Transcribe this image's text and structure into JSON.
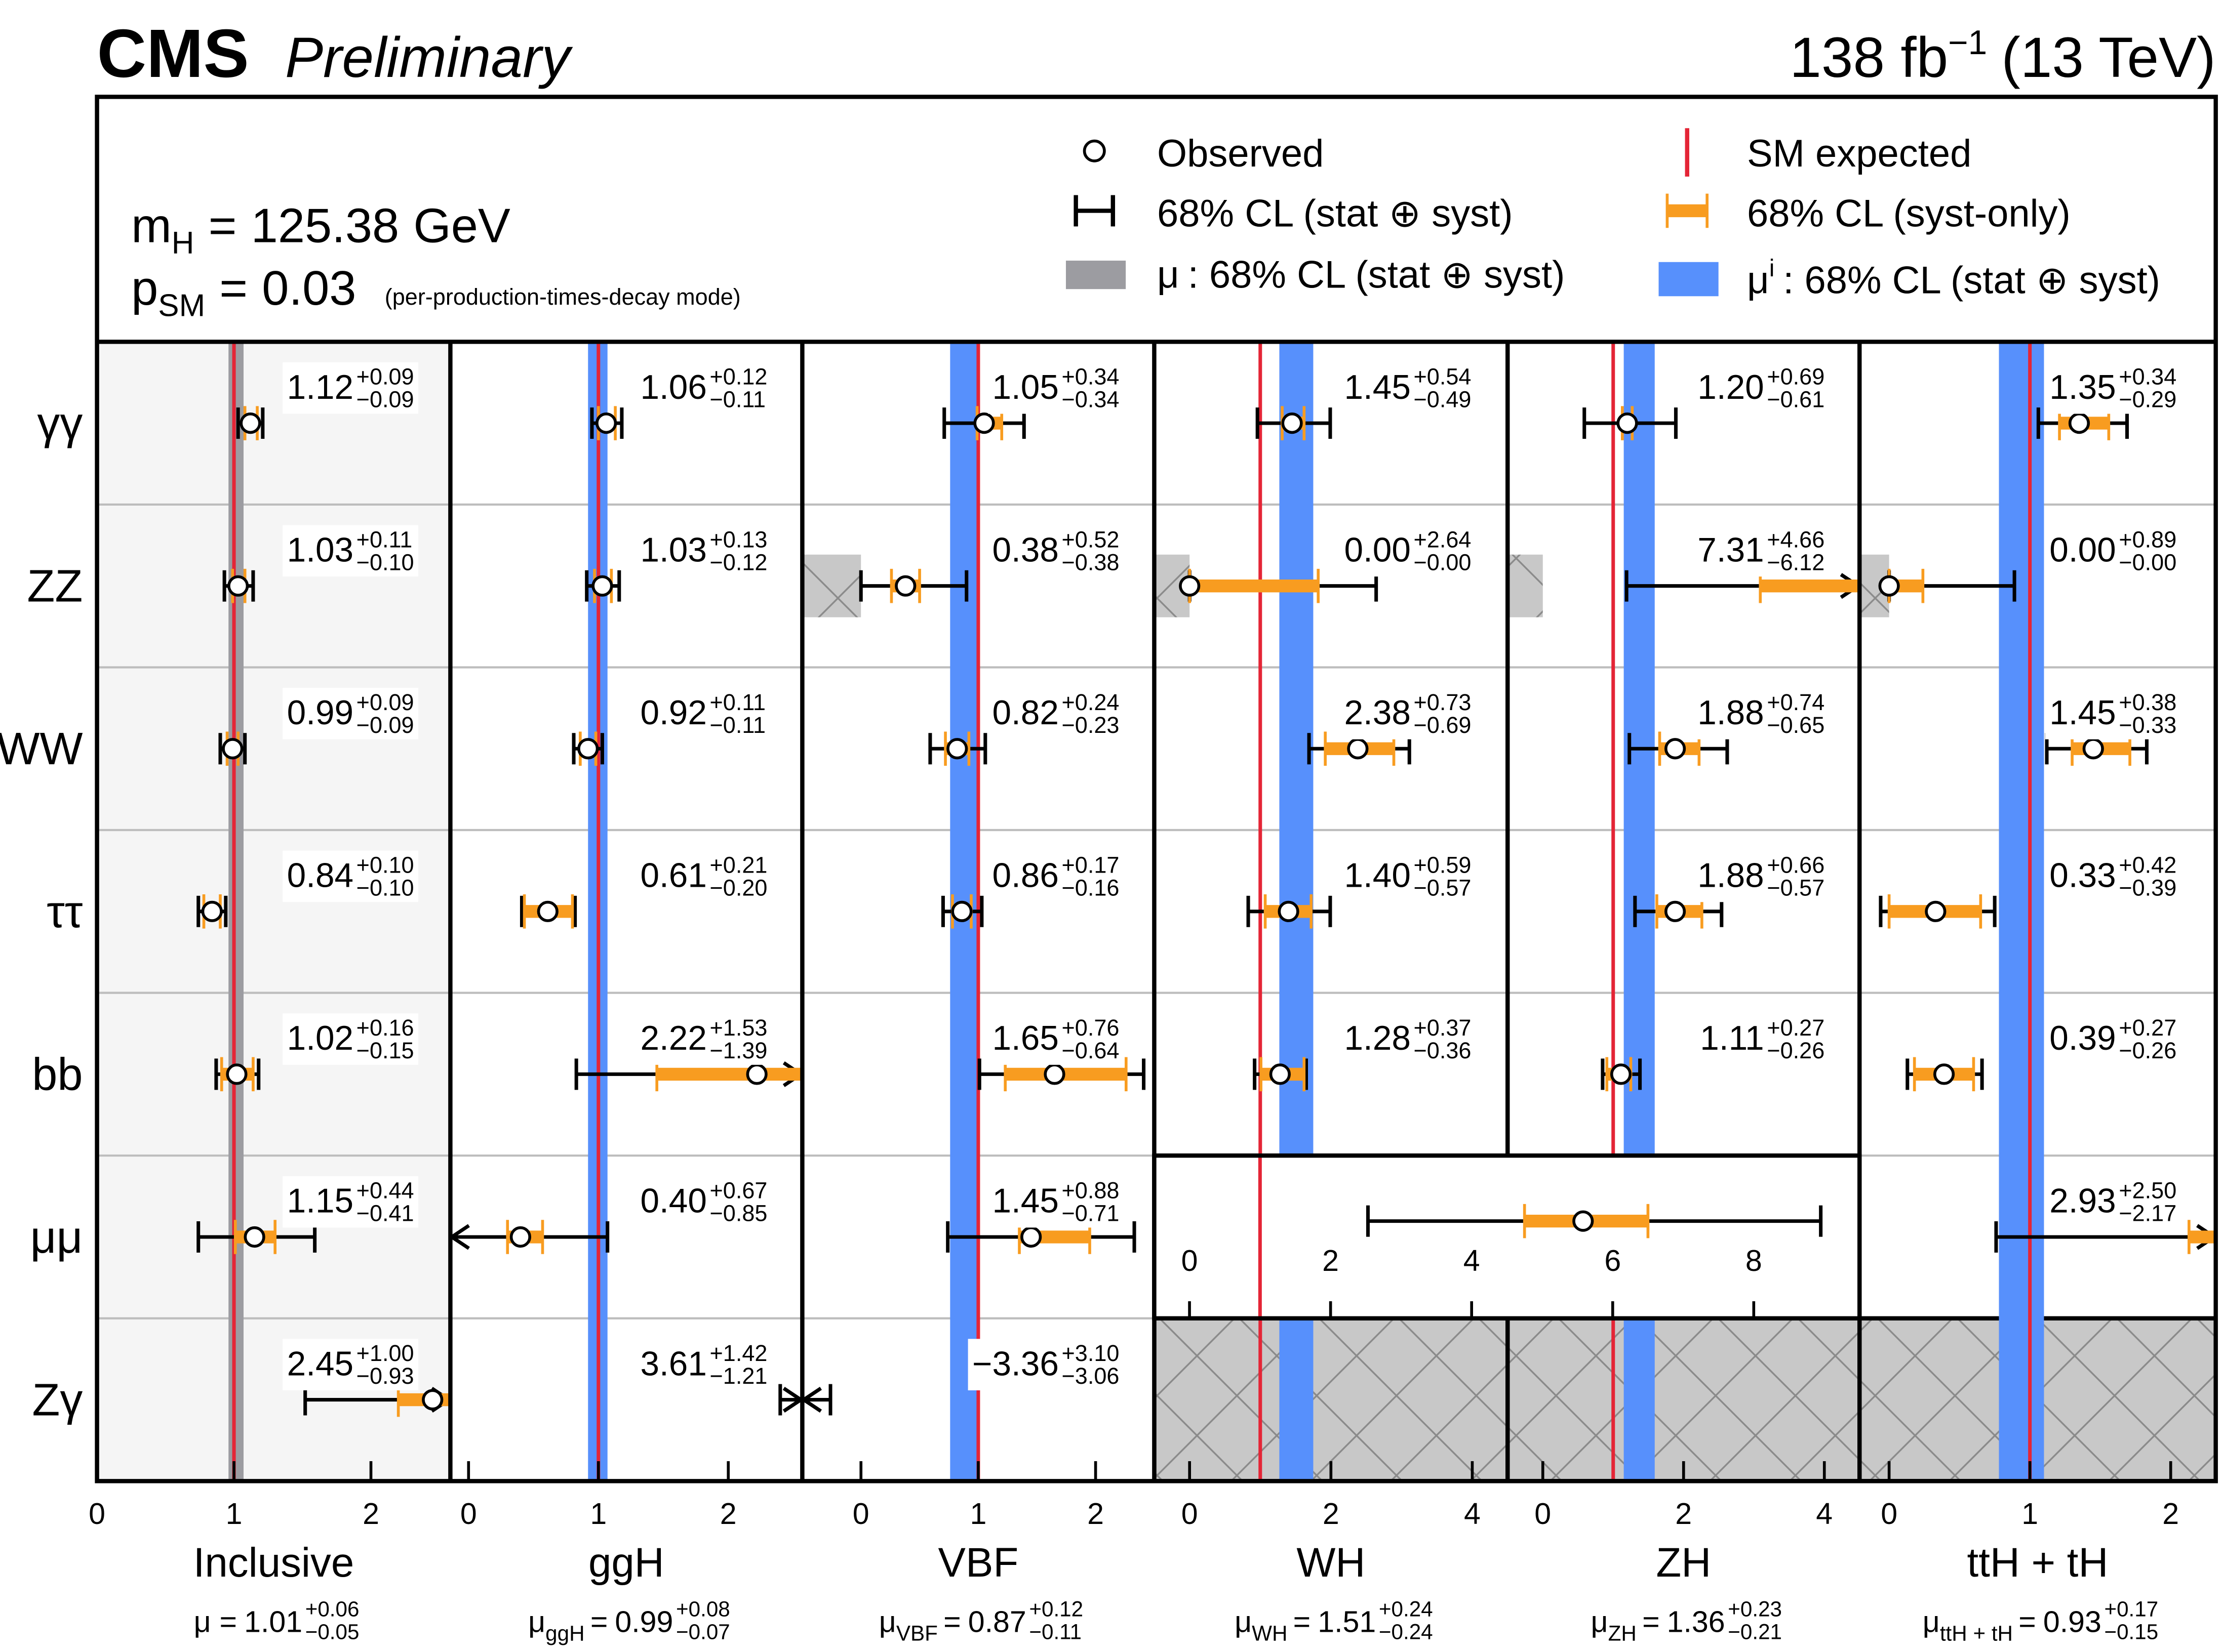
{
  "chart_data": {
    "type": "signal-strength-grid",
    "experiment": "CMS",
    "status": "Preliminary",
    "lumi": {
      "text": "138 fb",
      "exp": "−1",
      "energy": "(13 TeV)"
    },
    "mass": {
      "symbol": "m",
      "sub": "H",
      "value": 125.38,
      "unit": "GeV"
    },
    "p_sm": {
      "symbol": "p",
      "sub": "SM",
      "value": 0.03,
      "note": "(per-production-times-decay mode)"
    },
    "equals": "=",
    "legend": {
      "observed": "Observed",
      "total": "68% CL (stat ⊕ syst)",
      "mu": {
        "symbol": "μ",
        "text": ": 68% CL (stat ⊕ syst)"
      },
      "sm": "SM expected",
      "syst": "68% CL (syst-only)",
      "mui": {
        "symbol": "μ",
        "sup": "i",
        "text": ": 68% CL (stat ⊕ syst)"
      }
    },
    "colors": {
      "error": "#000000",
      "syst": "#f89c20",
      "sm": "#e42536",
      "mu_band": "#9c9ca1",
      "mui_band": "#5790fc",
      "hatch": "#c8c8c8",
      "inclusive_background": "#f5f5f5"
    },
    "sm_value": 1,
    "rows": [
      "γγ",
      "ZZ",
      "WW",
      "ττ",
      "bb",
      "μμ",
      "Zγ"
    ],
    "columns": [
      {
        "name": "Inclusive",
        "band": "mu_band",
        "background": true,
        "xlim": [
          0,
          2.58
        ],
        "xticks": [
          0,
          1,
          2
        ],
        "mu_symbol": "μ",
        "mu_value": 1.01,
        "mu_err_up": 0.06,
        "mu_err_up_label": "+0.06",
        "mu_err_down": 0.05,
        "mu_err_down_label": "−0.05",
        "values": [
          1.12,
          1.03,
          0.99,
          0.84,
          1.02,
          1.15,
          2.45
        ],
        "value_labels": [
          "1.12",
          "1.03",
          "0.99",
          "0.84",
          "1.02",
          "1.15",
          "2.45"
        ],
        "err_up": [
          0.09,
          0.11,
          0.09,
          0.1,
          0.16,
          0.44,
          1.0
        ],
        "err_up_labels": [
          "+0.09",
          "+0.11",
          "+0.09",
          "+0.10",
          "+0.16",
          "+0.44",
          "+1.00"
        ],
        "err_down": [
          0.09,
          0.1,
          0.09,
          0.1,
          0.15,
          0.41,
          0.93
        ],
        "err_down_labels": [
          "−0.09",
          "−0.10",
          "−0.09",
          "−0.10",
          "−0.15",
          "−0.41",
          "−0.93"
        ],
        "syst_up": [
          0.05,
          0.05,
          0.04,
          0.06,
          0.12,
          0.15,
          0.3
        ],
        "syst_down": [
          0.04,
          0.04,
          0.04,
          0.06,
          0.11,
          0.14,
          0.25
        ]
      },
      {
        "name": "ggH",
        "band": "mui_band",
        "xlim": [
          -0.14,
          2.57
        ],
        "xticks": [
          0,
          1,
          2
        ],
        "mu_symbol": "μ",
        "mu_sub": "ggH",
        "mu_value": 0.99,
        "mu_err_up": 0.08,
        "mu_err_up_label": "+0.08",
        "mu_err_down": 0.07,
        "mu_err_down_label": "−0.07",
        "values": [
          1.06,
          1.03,
          0.92,
          0.61,
          2.22,
          0.4,
          3.61
        ],
        "value_labels": [
          "1.06",
          "1.03",
          "0.92",
          "0.61",
          "2.22",
          "0.40",
          "3.61"
        ],
        "err_up": [
          0.12,
          0.13,
          0.11,
          0.21,
          1.53,
          0.67,
          1.42
        ],
        "err_up_labels": [
          "+0.12",
          "+0.13",
          "+0.11",
          "+0.21",
          "+1.53",
          "+0.67",
          "+1.42"
        ],
        "err_down": [
          0.11,
          0.12,
          0.11,
          0.2,
          1.39,
          0.85,
          1.21
        ],
        "err_down_labels": [
          "−0.11",
          "−0.12",
          "−0.11",
          "−0.20",
          "−1.39",
          "−0.85",
          "−1.21"
        ],
        "syst_up": [
          0.07,
          0.07,
          0.06,
          0.19,
          0.9,
          0.17,
          0.5
        ],
        "syst_down": [
          0.06,
          0.06,
          0.06,
          0.18,
          0.77,
          0.1,
          0.4
        ]
      },
      {
        "name": "VBF",
        "band": "mui_band",
        "xlim": [
          -0.5,
          2.5
        ],
        "xticks": [
          0,
          1,
          2
        ],
        "hatch_negative_rows": [
          1
        ],
        "mu_symbol": "μ",
        "mu_sub": "VBF",
        "mu_value": 0.87,
        "mu_err_up": 0.12,
        "mu_err_up_label": "+0.12",
        "mu_err_down": 0.11,
        "mu_err_down_label": "−0.11",
        "values": [
          1.05,
          0.38,
          0.82,
          0.86,
          1.65,
          1.45,
          -3.36
        ],
        "value_labels": [
          "1.05",
          "0.38",
          "0.82",
          "0.86",
          "1.65",
          "1.45",
          "−3.36"
        ],
        "err_up": [
          0.34,
          0.52,
          0.24,
          0.17,
          0.76,
          0.88,
          3.1
        ],
        "err_up_labels": [
          "+0.34",
          "+0.52",
          "+0.24",
          "+0.17",
          "+0.76",
          "+0.88",
          "+3.10"
        ],
        "err_down": [
          0.34,
          0.38,
          0.23,
          0.16,
          0.64,
          0.71,
          3.06
        ],
        "err_down_labels": [
          "−0.34",
          "−0.38",
          "−0.23",
          "−0.16",
          "−0.64",
          "−0.71",
          "−3.06"
        ],
        "syst_up": [
          0.15,
          0.12,
          0.1,
          0.08,
          0.61,
          0.5,
          1.0
        ],
        "syst_down": [
          0.06,
          0.12,
          0.1,
          0.08,
          0.42,
          0.1,
          0.9
        ]
      },
      {
        "name": "WH",
        "band": "mui_band",
        "xlim": [
          -0.5,
          4.5
        ],
        "xticks": [
          0,
          2,
          4
        ],
        "hatch_negative_rows": [
          1
        ],
        "mu_symbol": "μ",
        "mu_sub": "WH",
        "mu_value": 1.51,
        "mu_err_up": 0.24,
        "mu_err_up_label": "+0.24",
        "mu_err_down": 0.24,
        "mu_err_down_label": "−0.24",
        "values": [
          1.45,
          0.0,
          2.38,
          1.4,
          1.28,
          null,
          null
        ],
        "value_labels": [
          "1.45",
          "0.00",
          "2.38",
          "1.40",
          "1.28",
          null,
          null
        ],
        "err_up": [
          0.54,
          2.64,
          0.73,
          0.59,
          0.37,
          null,
          null
        ],
        "err_up_labels": [
          "+0.54",
          "+2.64",
          "+0.73",
          "+0.59",
          "+0.37",
          null,
          null
        ],
        "err_down": [
          0.49,
          0.0,
          0.69,
          0.57,
          0.36,
          null,
          null
        ],
        "err_down_labels": [
          "−0.49",
          "−0.00",
          "−0.69",
          "−0.57",
          "−0.36",
          null,
          null
        ],
        "syst_up": [
          0.17,
          1.82,
          0.51,
          0.32,
          0.34,
          null,
          null
        ],
        "syst_down": [
          0.14,
          0,
          0.46,
          0.33,
          0.27,
          null,
          null
        ]
      },
      {
        "name": "ZH",
        "band": "mui_band",
        "xlim": [
          -0.5,
          4.5
        ],
        "xticks": [
          0,
          2,
          4
        ],
        "hatch_negative_rows": [
          1
        ],
        "mu_symbol": "μ",
        "mu_sub": "ZH",
        "mu_value": 1.36,
        "mu_err_up": 0.23,
        "mu_err_up_label": "+0.23",
        "mu_err_down": 0.21,
        "mu_err_down_label": "−0.21",
        "values": [
          1.2,
          7.31,
          1.88,
          1.88,
          1.11,
          null,
          null
        ],
        "value_labels": [
          "1.20",
          "7.31",
          "1.88",
          "1.88",
          "1.11",
          null,
          null
        ],
        "err_up": [
          0.69,
          4.66,
          0.74,
          0.66,
          0.27,
          null,
          null
        ],
        "err_up_labels": [
          "+0.69",
          "+4.66",
          "+0.74",
          "+0.66",
          "+0.27",
          null,
          null
        ],
        "err_down": [
          0.61,
          6.12,
          0.65,
          0.57,
          0.26,
          null,
          null
        ],
        "err_down_labels": [
          "−0.61",
          "−6.12",
          "−0.65",
          "−0.57",
          "−0.26",
          null,
          null
        ],
        "syst_up": [
          0.07,
          2.0,
          0.34,
          0.38,
          0.14,
          null,
          null
        ],
        "syst_down": [
          0.07,
          4.22,
          0.22,
          0.26,
          0.2,
          null,
          null
        ]
      },
      {
        "name": "ttH + tH",
        "band": "mui_band",
        "xlim": [
          -0.21,
          2.32
        ],
        "xticks": [
          0,
          1,
          2
        ],
        "hatch_negative_rows": [
          1
        ],
        "mu_symbol": "μ",
        "mu_sub": "ttH + tH",
        "mu_value": 0.93,
        "mu_err_up": 0.17,
        "mu_err_up_label": "+0.17",
        "mu_err_down": 0.15,
        "mu_err_down_label": "−0.15",
        "values": [
          1.35,
          0.0,
          1.45,
          0.33,
          0.39,
          2.93,
          null
        ],
        "value_labels": [
          "1.35",
          "0.00",
          "1.45",
          "0.33",
          "0.39",
          "2.93",
          null
        ],
        "err_up": [
          0.34,
          0.89,
          0.38,
          0.42,
          0.27,
          2.5,
          null
        ],
        "err_up_labels": [
          "+0.34",
          "+0.89",
          "+0.38",
          "+0.42",
          "+0.27",
          "+2.50",
          null
        ],
        "err_down": [
          0.29,
          0.0,
          0.33,
          0.39,
          0.26,
          2.17,
          null
        ],
        "err_down_labels": [
          "−0.29",
          "−0.00",
          "−0.33",
          "−0.39",
          "−0.26",
          "−2.17",
          null
        ],
        "syst_up": [
          0.21,
          0.24,
          0.26,
          0.32,
          0.21,
          1.0,
          null
        ],
        "syst_down": [
          0.14,
          0,
          0.15,
          0.33,
          0.21,
          0.8,
          null
        ]
      }
    ],
    "vh_mumu": {
      "value": 5.58,
      "err_up": 3.37,
      "err_down": 3.05,
      "syst_up": 0.92,
      "syst_down": 0.83,
      "xlim": [
        -0.5,
        9.5
      ],
      "xticks": [
        0,
        2,
        4,
        6,
        8
      ]
    }
  }
}
